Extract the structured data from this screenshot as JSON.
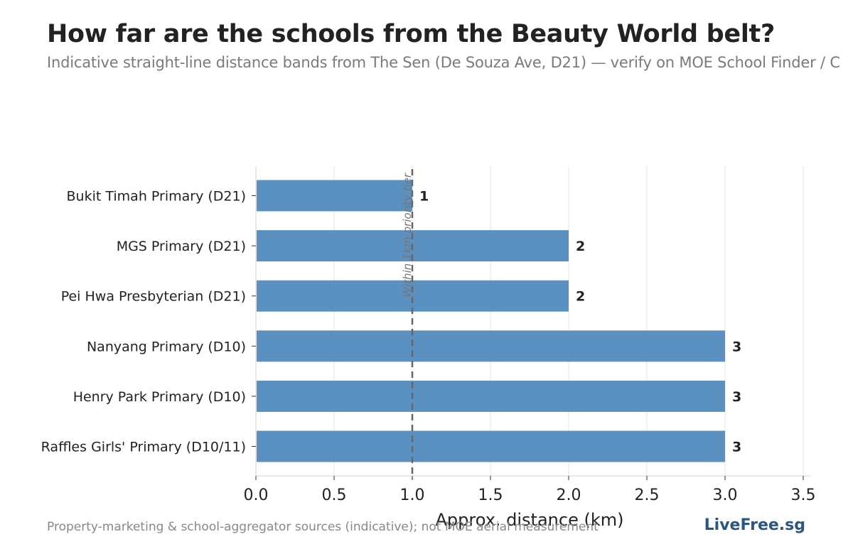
{
  "header": {
    "title": "How far are the schools from the Beauty World belt?",
    "subtitle": "Indicative straight-line distance bands from The Sen (De Souza Ave, D21) — verify on MOE School Finder / C"
  },
  "footer": {
    "source": "Property-marketing & school-aggregator sources (indicative); not MOE aerial measurement",
    "brand": "LiveFree.sg"
  },
  "colors": {
    "bar": "#5a91c0",
    "text": "#222222",
    "grid": "#e6e6e6",
    "refline": "#666666"
  },
  "chart_data": {
    "type": "bar",
    "orientation": "horizontal",
    "categories": [
      "Bukit Timah Primary (D21)",
      "MGS Primary (D21)",
      "Pei Hwa Presbyterian (D21)",
      "Nanyang Primary (D10)",
      "Henry Park Primary (D10)",
      "Raffles Girls' Primary (D10/11)"
    ],
    "values": [
      1,
      2,
      2,
      3,
      3,
      3
    ],
    "data_labels": [
      "1",
      "2",
      "2",
      "3",
      "3",
      "3"
    ],
    "xlabel": "Approx. distance (km)",
    "xlim": [
      0,
      3.5
    ],
    "xticks": [
      "0.0",
      "0.5",
      "1.0",
      "1.5",
      "2.0",
      "2.5",
      "3.0",
      "3.5"
    ],
    "grid": "vertical",
    "reference_line": {
      "x": 1.0,
      "label": "Within 1km priority tier"
    }
  }
}
